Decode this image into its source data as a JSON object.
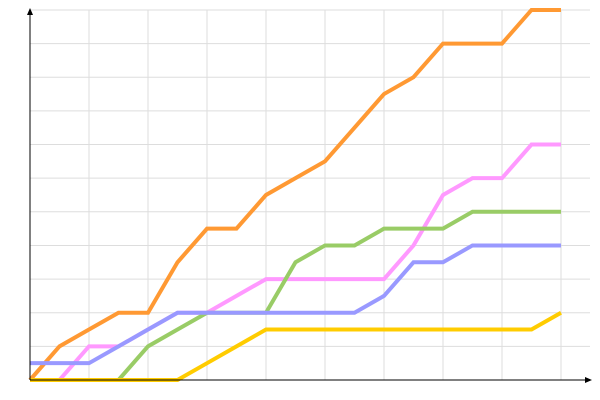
{
  "chart_data": {
    "type": "line",
    "title": "",
    "xlabel": "",
    "ylabel": "",
    "grid": true,
    "x": [
      0,
      0.5,
      1,
      1.5,
      2,
      2.5,
      3,
      3.5,
      4,
      4.5,
      5,
      5.5,
      6,
      6.5,
      7,
      7.5,
      8,
      8.5,
      9
    ],
    "xlim": [
      0,
      9.5
    ],
    "ylim": [
      0,
      11
    ],
    "series": [
      {
        "color": "#ff9933",
        "values": [
          0,
          1,
          1.5,
          2,
          2,
          3.5,
          4.5,
          4.5,
          5.5,
          6,
          6.5,
          7.5,
          8.5,
          9,
          10,
          10,
          10,
          11,
          11
        ]
      },
      {
        "color": "#ff99ff",
        "values": [
          0,
          0,
          1,
          1,
          1.5,
          2,
          2,
          2.5,
          3,
          3,
          3,
          3,
          3,
          4,
          5.5,
          6,
          6,
          7,
          7
        ]
      },
      {
        "color": "#99cc66",
        "values": [
          0,
          0,
          0,
          0,
          1,
          1.5,
          2,
          2,
          2,
          3.5,
          4,
          4,
          4.5,
          4.5,
          4.5,
          5,
          5,
          5,
          5
        ]
      },
      {
        "color": "#9999ff",
        "values": [
          0.5,
          0.5,
          0.5,
          1,
          1.5,
          2,
          2,
          2,
          2,
          2,
          2,
          2,
          2.5,
          3.5,
          3.5,
          4,
          4,
          4,
          4
        ]
      },
      {
        "color": "#ffcc00",
        "values": [
          0,
          0,
          0,
          0,
          0,
          0,
          0.5,
          1,
          1.5,
          1.5,
          1.5,
          1.5,
          1.5,
          1.5,
          1.5,
          1.5,
          1.5,
          1.5,
          2
        ]
      }
    ]
  }
}
